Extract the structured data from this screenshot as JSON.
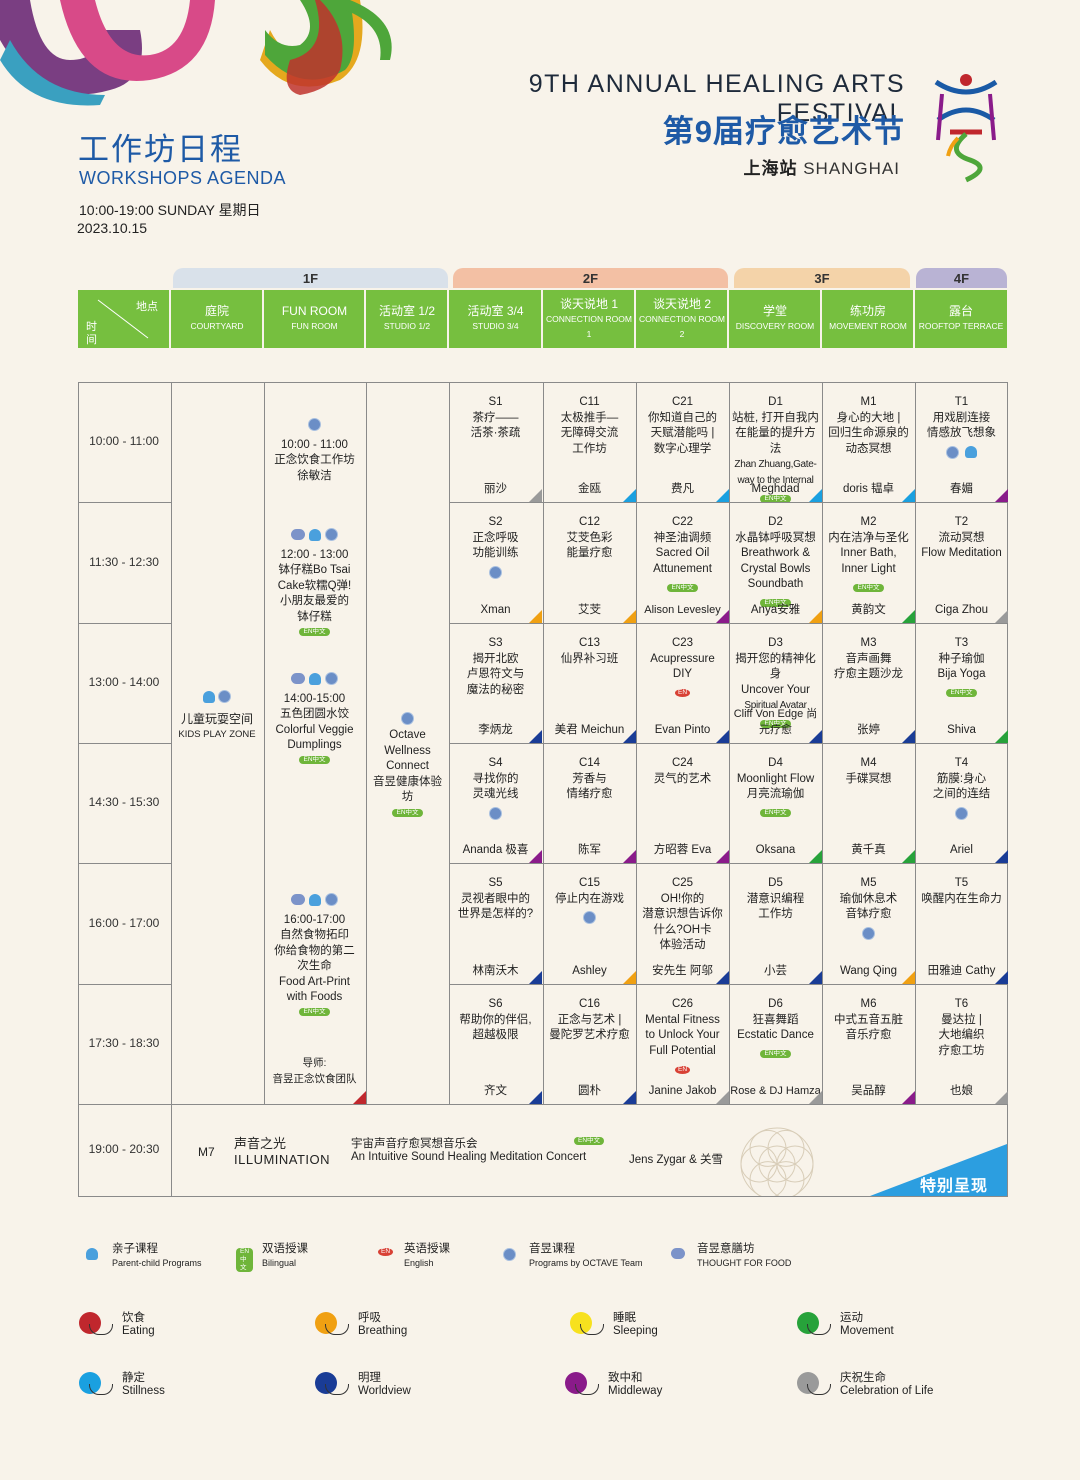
{
  "header": {
    "festival_en": "9TH ANNUAL HEALING ARTS FESTIVAL",
    "festival_cn": "第9届疗愈艺术节",
    "city_cn": "上海站",
    "city_en": "SHANGHAI",
    "agenda_cn": "工作坊日程",
    "agenda_en": "WORKSHOPS AGENDA",
    "time": "10:00-19:00 SUNDAY 星期日",
    "date": "2023.10.15"
  },
  "floors": [
    "1F",
    "2F",
    "3F",
    "4F"
  ],
  "corner": {
    "place": "地点",
    "time_a": "时",
    "time_b": "间"
  },
  "rooms": [
    {
      "cn": "庭院",
      "en": "COURTYARD"
    },
    {
      "cn": "FUN ROOM",
      "en": "FUN ROOM"
    },
    {
      "cn": "活动室 1/2",
      "en": "STUDIO 1/2"
    },
    {
      "cn": "活动室 3/4",
      "en": "STUDIO 3/4"
    },
    {
      "cn": "谈天说地 1",
      "en": "CONNECTION ROOM 1"
    },
    {
      "cn": "谈天说地 2",
      "en": "CONNECTION ROOM 2"
    },
    {
      "cn": "学堂",
      "en": "DISCOVERY ROOM"
    },
    {
      "cn": "练功房",
      "en": "MOVEMENT ROOM"
    },
    {
      "cn": "露台",
      "en": "ROOFTOP TERRACE"
    }
  ],
  "times": [
    "10:00 - 11:00",
    "11:30 - 12:30",
    "13:00 - 14:00",
    "14:30 - 15:30",
    "16:00 - 17:00",
    "17:30 - 18:30",
    "19:00 - 20:30"
  ],
  "courtyard": {
    "cn": "儿童玩耍空间",
    "en": "KIDS PLAY ZONE"
  },
  "funroom": [
    {
      "time": "10:00 - 11:00",
      "lines": [
        "正念饮食工作坊",
        "徐敏洁"
      ]
    },
    {
      "time": "12:00 - 13:00",
      "lines": [
        "钵仔糕Bo Tsai",
        "Cake软糯Q弹!",
        "小朋友最爱的",
        "钵仔糕"
      ]
    },
    {
      "time": "14:00-15:00",
      "lines": [
        "五色团圆水饺",
        "Colorful Veggie",
        "Dumplings"
      ]
    },
    {
      "time": "16:00-17:00",
      "lines": [
        "自然食物拓印",
        "你给食物的第二",
        "次生命",
        "Food Art-Print",
        "with Foods"
      ]
    },
    {
      "lines": [
        "导师:",
        "音昱正念饮食团队"
      ]
    }
  ],
  "studio12": {
    "lines": [
      "Octave",
      "Wellness",
      "Connect",
      "音昱健康体验坊"
    ]
  },
  "sessions": [
    [
      {
        "code": "S1",
        "lines": [
          "茶疗——",
          "活茶·茶疏"
        ],
        "host": "丽沙"
      },
      {
        "code": "C11",
        "lines": [
          "太极推手—",
          "无障碍交流",
          "工作坊"
        ],
        "host": "金瓯"
      },
      {
        "code": "C21",
        "lines": [
          "你知道自己的",
          "天赋潜能吗 |",
          "数字心理学"
        ],
        "host": "费凡"
      },
      {
        "code": "D1",
        "lines": [
          "站桩, 打开自我内",
          "在能量的提升方法",
          "Zhan Zhuang,Gate-",
          "way to the Internal"
        ],
        "host": "Meghdad"
      },
      {
        "code": "M1",
        "lines": [
          "身心的大地 |",
          "回归生命源泉的",
          "动态冥想"
        ],
        "host": "doris 韫卓"
      },
      {
        "code": "T1",
        "lines": [
          "用戏剧连接",
          "情感放飞想象"
        ],
        "host": "春媚"
      }
    ],
    [
      {
        "code": "S2",
        "lines": [
          "正念呼吸",
          "功能训练"
        ],
        "host": "Xman"
      },
      {
        "code": "C12",
        "lines": [
          "艾芠色彩",
          "能量疗愈"
        ],
        "host": "艾芠"
      },
      {
        "code": "C22",
        "lines": [
          "神圣油调频",
          "Sacred Oil",
          "Attunement"
        ],
        "host": "Alison Levesley"
      },
      {
        "code": "D2",
        "lines": [
          "水晶钵呼吸冥想",
          "Breathwork &",
          "Crystal Bowls",
          "Soundbath"
        ],
        "host": "Anya安雅"
      },
      {
        "code": "M2",
        "lines": [
          "内在洁净与圣化",
          "Inner Bath,",
          "Inner Light"
        ],
        "host": "黄韵文"
      },
      {
        "code": "T2",
        "lines": [
          "流动冥想",
          "Flow Meditation"
        ],
        "host": "Ciga Zhou"
      }
    ],
    [
      {
        "code": "S3",
        "lines": [
          "揭开北欧",
          "卢恩符文与",
          "魔法的秘密"
        ],
        "host": "李炳龙"
      },
      {
        "code": "C13",
        "lines": [
          "仙界补习班"
        ],
        "host": "美君 Meichun"
      },
      {
        "code": "C23",
        "lines": [
          "Acupressure",
          "DIY"
        ],
        "host": "Evan Pinto"
      },
      {
        "code": "D3",
        "lines": [
          "揭开您的精神化身",
          "Uncover Your",
          "Spiritual Avatar"
        ],
        "host": "Cliff Von Edge 尚元疗愈"
      },
      {
        "code": "M3",
        "lines": [
          "音声画舞",
          "疗愈主题沙龙"
        ],
        "host": "张婷"
      },
      {
        "code": "T3",
        "lines": [
          "种子瑜伽",
          "Bija Yoga"
        ],
        "host": "Shiva"
      }
    ],
    [
      {
        "code": "S4",
        "lines": [
          "寻找你的",
          "灵魂光线"
        ],
        "host": "Ananda 极喜"
      },
      {
        "code": "C14",
        "lines": [
          "芳香与",
          "情绪疗愈"
        ],
        "host": "陈军"
      },
      {
        "code": "C24",
        "lines": [
          "灵气的艺术"
        ],
        "host": "方昭蓉 Eva"
      },
      {
        "code": "D4",
        "lines": [
          "Moonlight Flow",
          "月亮流瑜伽"
        ],
        "host": "Oksana"
      },
      {
        "code": "M4",
        "lines": [
          "手碟冥想"
        ],
        "host": "黄千真"
      },
      {
        "code": "T4",
        "lines": [
          "筋膜:身心",
          "之间的连结"
        ],
        "host": "Ariel"
      }
    ],
    [
      {
        "code": "S5",
        "lines": [
          "灵视者眼中的",
          "世界是怎样的?"
        ],
        "host": "林南沃木"
      },
      {
        "code": "C15",
        "lines": [
          "停止内在游戏"
        ],
        "host": "Ashley"
      },
      {
        "code": "C25",
        "lines": [
          "OH!你的",
          "潜意识想告诉你",
          "什么?OH卡",
          "体验活动"
        ],
        "host": "安先生 阿邬"
      },
      {
        "code": "D5",
        "lines": [
          "潜意识编程",
          "工作坊"
        ],
        "host": "小芸"
      },
      {
        "code": "M5",
        "lines": [
          "瑜伽休息术",
          "音钵疗愈"
        ],
        "host": "Wang Qing"
      },
      {
        "code": "T5",
        "lines": [
          "唤醒内在生命力"
        ],
        "host": "田雅迪 Cathy"
      }
    ],
    [
      {
        "code": "S6",
        "lines": [
          "帮助你的伴侣,",
          "超越极限"
        ],
        "host": "齐文"
      },
      {
        "code": "C16",
        "lines": [
          "正念与艺术 |",
          "曼陀罗艺术疗愈"
        ],
        "host": "圆朴"
      },
      {
        "code": "C26",
        "lines": [
          "Mental Fitness",
          "to Unlock Your",
          "Full Potential"
        ],
        "host": "Janine Jakob"
      },
      {
        "code": "D6",
        "lines": [
          "狂喜舞蹈",
          "Ecstatic Dance"
        ],
        "host": "Rose & DJ Hamza"
      },
      {
        "code": "M6",
        "lines": [
          "中式五音五脏",
          "音乐疗愈"
        ],
        "host": "吴品醇"
      },
      {
        "code": "T6",
        "lines": [
          "曼达拉 |",
          "大地编织",
          "疗愈工坊"
        ],
        "host": "也娘"
      }
    ]
  ],
  "evening": {
    "code": "M7",
    "title_cn": "声音之光",
    "title_en": "ILLUMINATION",
    "desc_cn": "宇宙声音疗愈冥想音乐会",
    "desc_en": "An Intuitive Sound Healing Meditation Concert",
    "host": "Jens Zygar & 关雪",
    "special": "特别呈现"
  },
  "badges": {
    "bilingual": "EN中文",
    "english": "EN"
  },
  "legend": [
    {
      "cn": "亲子课程",
      "en": "Parent-child Programs",
      "icon": "parent-child-icon"
    },
    {
      "cn": "双语授课",
      "en": "Bilingual",
      "icon": "bilingual-icon"
    },
    {
      "cn": "英语授课",
      "en": "English",
      "icon": "english-icon"
    },
    {
      "cn": "音昱课程",
      "en": "Programs by OCTAVE Team",
      "icon": "octave-icon"
    },
    {
      "cn": "音昱意膳坊",
      "en": "THOUGHT FOR FOOD",
      "icon": "brain-icon"
    }
  ],
  "categories": [
    {
      "cn": "饮食",
      "en": "Eating",
      "color": "#c0272d"
    },
    {
      "cn": "呼吸",
      "en": "Breathing",
      "color": "#f0a012"
    },
    {
      "cn": "睡眠",
      "en": "Sleeping",
      "color": "#f7e11e"
    },
    {
      "cn": "运动",
      "en": "Movement",
      "color": "#27a23a"
    },
    {
      "cn": "静定",
      "en": "Stillness",
      "color": "#1aa0e0"
    },
    {
      "cn": "明理",
      "en": "Worldview",
      "color": "#1a3c96"
    },
    {
      "cn": "致中和",
      "en": "Middleway",
      "color": "#8a1b8a"
    },
    {
      "cn": "庆祝生命",
      "en": "Celebration of Life",
      "color": "#9a9a9a"
    }
  ],
  "cell_colors": [
    [
      "#9a9a9a",
      "#1aa0e0",
      "#1aa0e0",
      "#1aa0e0",
      "#1aa0e0",
      "#8a1b8a"
    ],
    [
      "#f0a012",
      "#f0a012",
      "#8a1b8a",
      "#f0a012",
      "#27a23a",
      "#9a9a9a"
    ],
    [
      "#1a3c96",
      "#1a3c96",
      "#1a3c96",
      "#1a3c96",
      "#1a3c96",
      "#27a23a"
    ],
    [
      "#8a1b8a",
      "#8a1b8a",
      "#8a1b8a",
      "#27a23a",
      "#27a23a",
      "#1a3c96"
    ],
    [
      "#1a3c96",
      "#f0a012",
      "#1a3c96",
      "#1a3c96",
      "#f0a012",
      "#1a3c96"
    ],
    [
      "#1a3c96",
      "#1a3c96",
      "#9a9a9a",
      "#9a9a9a",
      "#8a1b8a",
      "#9a9a9a"
    ]
  ]
}
